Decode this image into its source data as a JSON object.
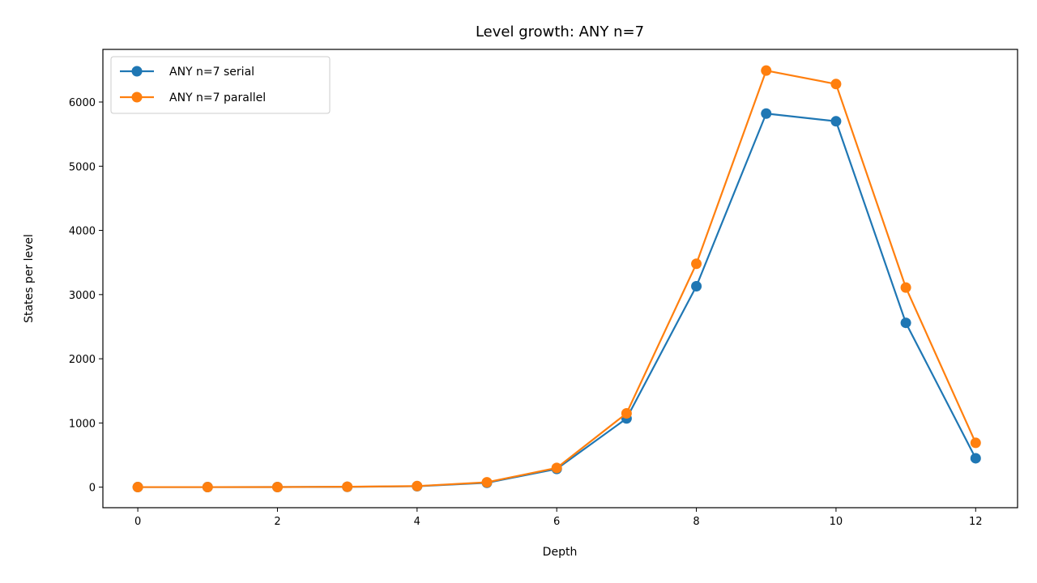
{
  "chart_data": {
    "type": "line",
    "title": "Level growth: ANY n=7",
    "xlabel": "Depth",
    "ylabel": "States per level",
    "xlim": [
      -0.5,
      12.6
    ],
    "ylim": [
      -320,
      6820
    ],
    "xticks": [
      0,
      2,
      4,
      6,
      8,
      10,
      12
    ],
    "yticks": [
      0,
      1000,
      2000,
      3000,
      4000,
      5000,
      6000
    ],
    "grid": false,
    "legend_position": "top-left",
    "x": [
      0,
      1,
      2,
      3,
      4,
      5,
      6,
      7,
      8,
      9,
      10,
      11,
      12
    ],
    "series": [
      {
        "name": "ANY n=7 serial",
        "color": "#1f77b4",
        "values": [
          1,
          1,
          2,
          5,
          14,
          68,
          284,
          1070,
          3130,
          5820,
          5700,
          2560,
          450
        ]
      },
      {
        "name": "ANY n=7 parallel",
        "color": "#ff7f0e",
        "values": [
          1,
          1,
          2,
          6,
          17,
          76,
          300,
          1150,
          3480,
          6490,
          6280,
          3110,
          690
        ]
      }
    ]
  }
}
